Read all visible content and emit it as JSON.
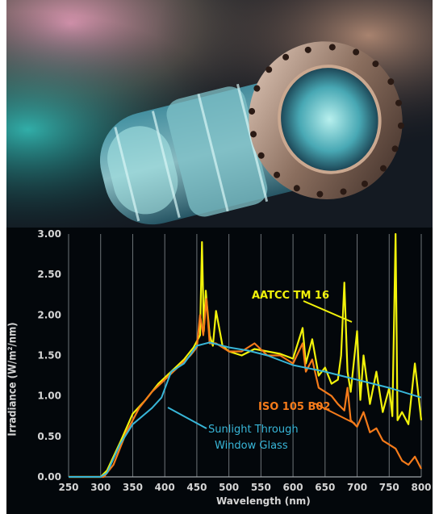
{
  "chart_data": {
    "type": "line",
    "xlabel": "Wavelength (nm)",
    "ylabel": "Irradiance (W/m²/nm)",
    "xlim": [
      250,
      800
    ],
    "ylim": [
      0,
      3
    ],
    "xticks": [
      "250",
      "300",
      "350",
      "400",
      "450",
      "500",
      "550",
      "600",
      "650",
      "700",
      "750",
      "800"
    ],
    "yticks": [
      "0.00",
      "0.50",
      "1.00",
      "1.50",
      "2.00",
      "2.50",
      "3.00"
    ],
    "grid": true,
    "legend": "inline annotations",
    "series": [
      {
        "name": "AATCC TM 16",
        "color": "#f2f20a",
        "x": [
          250,
          300,
          310,
          330,
          350,
          370,
          390,
          410,
          430,
          445,
          455,
          458,
          461,
          464,
          470,
          475,
          480,
          490,
          500,
          520,
          540,
          560,
          580,
          600,
          615,
          620,
          630,
          640,
          650,
          660,
          670,
          675,
          680,
          685,
          690,
          700,
          705,
          710,
          720,
          730,
          740,
          750,
          755,
          760,
          763,
          770,
          780,
          790,
          800
        ],
        "y": [
          0,
          0,
          0.08,
          0.42,
          0.78,
          0.95,
          1.15,
          1.3,
          1.45,
          1.6,
          1.75,
          2.9,
          1.8,
          2.3,
          1.75,
          1.62,
          2.05,
          1.62,
          1.55,
          1.5,
          1.58,
          1.55,
          1.52,
          1.46,
          1.84,
          1.4,
          1.7,
          1.25,
          1.35,
          1.15,
          1.2,
          1.5,
          2.4,
          1.3,
          1.05,
          1.8,
          0.95,
          1.5,
          0.9,
          1.3,
          0.8,
          1.1,
          0.75,
          3.0,
          0.7,
          0.8,
          0.65,
          1.4,
          0.7
        ]
      },
      {
        "name": "ISO 105 B02",
        "color": "#f57b1a",
        "x": [
          250,
          305,
          320,
          340,
          360,
          380,
          400,
          420,
          440,
          450,
          455,
          460,
          465,
          470,
          480,
          500,
          520,
          540,
          560,
          580,
          600,
          615,
          620,
          630,
          640,
          650,
          660,
          670,
          680,
          685,
          690,
          700,
          710,
          720,
          730,
          740,
          750,
          760,
          770,
          780,
          790,
          800
        ],
        "y": [
          0,
          0,
          0.15,
          0.55,
          0.85,
          1.05,
          1.2,
          1.35,
          1.5,
          1.6,
          2.0,
          1.75,
          2.2,
          1.65,
          1.65,
          1.55,
          1.55,
          1.65,
          1.5,
          1.5,
          1.4,
          1.65,
          1.3,
          1.45,
          1.1,
          1.05,
          1.0,
          0.9,
          0.82,
          1.1,
          0.7,
          0.62,
          0.8,
          0.55,
          0.6,
          0.45,
          0.4,
          0.35,
          0.2,
          0.15,
          0.25,
          0.1
        ]
      },
      {
        "name": "Sunlight Through Window Glass",
        "color": "#38b6d8",
        "x": [
          250,
          300,
          310,
          330,
          350,
          380,
          395,
          410,
          430,
          450,
          470,
          500,
          530,
          560,
          600,
          650,
          700,
          750,
          800
        ],
        "y": [
          0,
          0,
          0.05,
          0.4,
          0.65,
          0.85,
          0.98,
          1.3,
          1.4,
          1.62,
          1.66,
          1.6,
          1.56,
          1.5,
          1.38,
          1.3,
          1.2,
          1.1,
          0.98
        ]
      }
    ],
    "annotations": [
      {
        "text": "AATCC TM 16",
        "color": "#f2f20a"
      },
      {
        "text": "ISO 105 B02",
        "color": "#f57b1a"
      },
      {
        "text": "Sunlight Through",
        "color": "#38b6d8"
      },
      {
        "text": "Window Glass",
        "color": "#38b6d8"
      }
    ]
  }
}
